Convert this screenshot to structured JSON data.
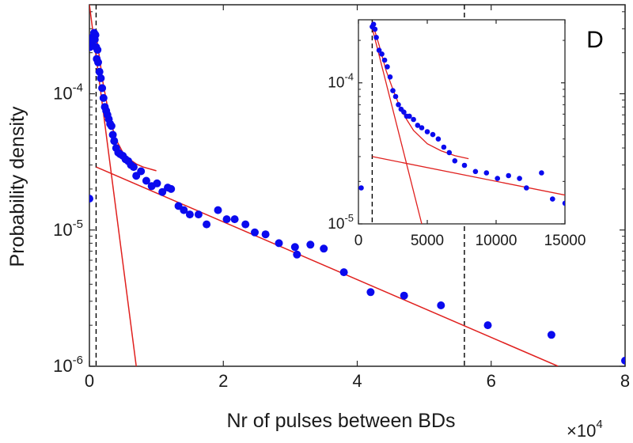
{
  "chart_data": [
    {
      "name": "main",
      "type": "scatter",
      "yscale": "log",
      "xlabel": "Nr of pulses between BDs",
      "ylabel": "Probability density",
      "x_multiplier_label": "×10",
      "x_multiplier_exp": "4",
      "panel_label": "D",
      "xlim": [
        0,
        80000
      ],
      "ylim": [
        1e-06,
        0.00045
      ],
      "xticks": [
        0,
        20000,
        40000,
        60000,
        80000
      ],
      "xtick_labels": [
        "0",
        "2",
        "4",
        "6",
        "8"
      ],
      "yticks": [
        1e-06,
        1e-05,
        0.0001
      ],
      "ytick_base": "10",
      "ytick_exps": [
        "-6",
        "-5",
        "-4"
      ],
      "vlines": [
        1000,
        56000
      ],
      "fit_lines": [
        {
          "name": "fast-component",
          "x": [
            0,
            7000
          ],
          "y": [
            0.00045,
            1e-06
          ]
        },
        {
          "name": "slow-component",
          "x": [
            1000,
            70000
          ],
          "y": [
            2.9e-05,
            1e-06
          ]
        },
        {
          "name": "sum-fit",
          "x": [
            1000,
            1500,
            2000,
            2500,
            3000,
            3500,
            4000,
            5000,
            6000,
            7000,
            8000,
            10000
          ],
          "y": [
            0.00027,
            0.000185,
            0.000123,
            9e-05,
            6.8e-05,
            5.5e-05,
            4.6e-05,
            3.7e-05,
            3.3e-05,
            3.05e-05,
            2.9e-05,
            2.72e-05
          ]
        }
      ],
      "series": [
        {
          "name": "data",
          "x": [
            0,
            100,
            300,
            500,
            700,
            800,
            900,
            1000,
            1100,
            1200,
            1300,
            1500,
            1700,
            1900,
            2100,
            2300,
            2500,
            2700,
            2900,
            3100,
            3300,
            3500,
            3700,
            4000,
            4300,
            4600,
            5000,
            5400,
            5800,
            6200,
            6600,
            7000,
            7700,
            8500,
            9300,
            10100,
            10900,
            11700,
            12200,
            13300,
            14100,
            15000,
            16300,
            17500,
            19200,
            20500,
            21700,
            23300,
            24700,
            26300,
            28300,
            30700,
            31000,
            33000,
            35000,
            38000,
            42000,
            47000,
            52500,
            59500,
            69000,
            80000
          ],
          "y": [
            1.7e-05,
            0.00022,
            0.00024,
            0.00026,
            0.00028,
            0.00025,
            0.00027,
            0.00022,
            0.00018,
            0.00021,
            0.00017,
            0.000145,
            0.00013,
            0.00011,
            9.3e-05,
            8e-05,
            7.5e-05,
            7e-05,
            6.5e-05,
            6e-05,
            5.8e-05,
            5e-05,
            4.5e-05,
            4e-05,
            3.7e-05,
            3.6e-05,
            3.5e-05,
            3.3e-05,
            3.2e-05,
            3e-05,
            2.9e-05,
            2.5e-05,
            2.7e-05,
            2.3e-05,
            2.1e-05,
            2.2e-05,
            1.9e-05,
            2.05e-05,
            2e-05,
            1.5e-05,
            1.4e-05,
            1.3e-05,
            1.3e-05,
            1.1e-05,
            1.4e-05,
            1.2e-05,
            1.2e-05,
            1.1e-05,
            9.6e-06,
            9.3e-06,
            8e-06,
            7.5e-06,
            6.6e-06,
            7.8e-06,
            7.3e-06,
            4.9e-06,
            3.5e-06,
            3.3e-06,
            2.8e-06,
            2e-06,
            1.7e-06,
            1.1e-06
          ]
        }
      ]
    },
    {
      "name": "inset",
      "type": "scatter",
      "yscale": "log",
      "xlim": [
        0,
        15000
      ],
      "ylim": [
        1e-05,
        0.00028
      ],
      "xticks": [
        0,
        5000,
        10000,
        15000
      ],
      "xtick_labels": [
        "0",
        "5000",
        "10000",
        "15000"
      ],
      "yticks": [
        1e-05,
        0.0001
      ],
      "ytick_base": "10",
      "ytick_exps": [
        "-5",
        "-4"
      ],
      "vlines": [
        1000
      ],
      "fit_lines": [
        {
          "name": "fast-component",
          "x": [
            1000,
            4600
          ],
          "y": [
            0.000245,
            1e-05
          ]
        },
        {
          "name": "slow-component",
          "x": [
            1000,
            15000
          ],
          "y": [
            3e-05,
            1.6e-05
          ]
        },
        {
          "name": "sum-fit",
          "x": [
            1000,
            1500,
            2000,
            2500,
            3000,
            3500,
            4000,
            5000,
            6000,
            7000,
            8000
          ],
          "y": [
            0.00027,
            0.000185,
            0.000123,
            9e-05,
            6.8e-05,
            5.5e-05,
            4.6e-05,
            3.7e-05,
            3.3e-05,
            3.05e-05,
            2.9e-05
          ]
        }
      ],
      "series": [
        {
          "name": "data",
          "x": [
            200,
            1000,
            1100,
            1200,
            1300,
            1500,
            1700,
            1900,
            2100,
            2300,
            2500,
            2700,
            2900,
            3100,
            3300,
            3500,
            3700,
            4000,
            4300,
            4600,
            5000,
            5400,
            5800,
            6200,
            6600,
            7000,
            7700,
            8500,
            9300,
            10100,
            10900,
            11700,
            12200,
            13300,
            14100,
            15000
          ],
          "y": [
            1.8e-05,
            0.00025,
            0.00026,
            0.00024,
            0.00021,
            0.00017,
            0.00016,
            0.000145,
            0.00013,
            0.00011,
            8.8e-05,
            8e-05,
            7e-05,
            6.5e-05,
            6.2e-05,
            5.8e-05,
            5.8e-05,
            5.5e-05,
            5e-05,
            4.8e-05,
            4.5e-05,
            4.3e-05,
            4e-05,
            3.5e-05,
            3.2e-05,
            2.8e-05,
            2.6e-05,
            2.35e-05,
            2.3e-05,
            2.1e-05,
            2.2e-05,
            2.1e-05,
            1.8e-05,
            2.3e-05,
            1.5e-05,
            1.4e-05
          ]
        }
      ]
    }
  ],
  "colors": {
    "points": "#0a0aee",
    "fit": "#e0201e",
    "axis": "#262626"
  }
}
